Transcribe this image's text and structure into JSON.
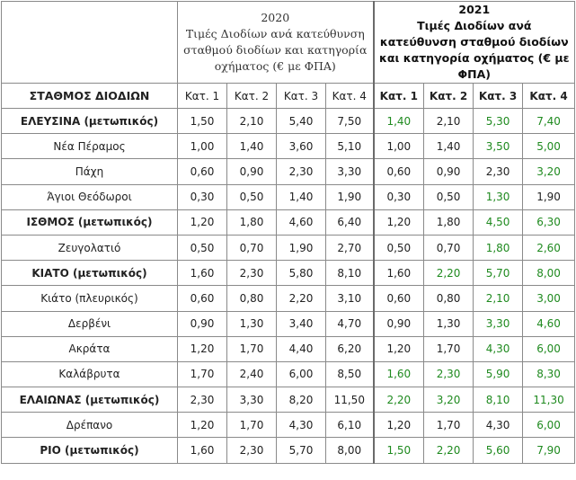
{
  "header": {
    "y2020": {
      "year": "2020",
      "desc": "Τιμές Διοδίων ανά κατεύθυνση σταθμού διοδίων και κατηγορία οχήματος (€ με ΦΠΑ)"
    },
    "y2021": {
      "year": "2021",
      "desc": "Τιμές Διοδίων ανά κατεύθυνση σταθμού διοδίων και κατηγορία οχήματος (€ με ΦΠΑ)"
    },
    "station_label": "ΣΤΑΘΜΟΣ ΔΙΟΔΙΩΝ",
    "cats_2020": [
      "Κατ. 1",
      "Κατ. 2",
      "Κατ. 3",
      "Κατ. 4"
    ],
    "cats_2021": [
      "Κατ. 1",
      "Κατ. 2",
      "Κατ. 3",
      "Κατ. 4"
    ]
  },
  "colors": {
    "highlight": "#1f8a1f",
    "border": "#8a8a8a"
  },
  "rows": [
    {
      "station": "ΕΛΕΥΣΙΝΑ (μετωπικός)",
      "main": true,
      "p2020": [
        "1,50",
        "2,10",
        "5,40",
        "7,50"
      ],
      "p2021": [
        "1,40",
        "2,10",
        "5,30",
        "7,40"
      ],
      "hl": [
        true,
        false,
        true,
        true
      ]
    },
    {
      "station": "Νέα Πέραμος",
      "main": false,
      "p2020": [
        "1,00",
        "1,40",
        "3,60",
        "5,10"
      ],
      "p2021": [
        "1,00",
        "1,40",
        "3,50",
        "5,00"
      ],
      "hl": [
        false,
        false,
        true,
        true
      ]
    },
    {
      "station": "Πάχη",
      "main": false,
      "p2020": [
        "0,60",
        "0,90",
        "2,30",
        "3,30"
      ],
      "p2021": [
        "0,60",
        "0,90",
        "2,30",
        "3,20"
      ],
      "hl": [
        false,
        false,
        false,
        true
      ]
    },
    {
      "station": "Άγιοι Θεόδωροι",
      "main": false,
      "p2020": [
        "0,30",
        "0,50",
        "1,40",
        "1,90"
      ],
      "p2021": [
        "0,30",
        "0,50",
        "1,30",
        "1,90"
      ],
      "hl": [
        false,
        false,
        true,
        false
      ]
    },
    {
      "station": "ΙΣΘΜΟΣ (μετωπικός)",
      "main": true,
      "p2020": [
        "1,20",
        "1,80",
        "4,60",
        "6,40"
      ],
      "p2021": [
        "1,20",
        "1,80",
        "4,50",
        "6,30"
      ],
      "hl": [
        false,
        false,
        true,
        true
      ]
    },
    {
      "station": "Ζευγολατιό",
      "main": false,
      "p2020": [
        "0,50",
        "0,70",
        "1,90",
        "2,70"
      ],
      "p2021": [
        "0,50",
        "0,70",
        "1,80",
        "2,60"
      ],
      "hl": [
        false,
        false,
        true,
        true
      ]
    },
    {
      "station": "ΚΙΑΤΟ (μετωπικός)",
      "main": true,
      "p2020": [
        "1,60",
        "2,30",
        "5,80",
        "8,10"
      ],
      "p2021": [
        "1,60",
        "2,20",
        "5,70",
        "8,00"
      ],
      "hl": [
        false,
        true,
        true,
        true
      ]
    },
    {
      "station": "Κιάτο (πλευρικός)",
      "main": false,
      "p2020": [
        "0,60",
        "0,80",
        "2,20",
        "3,10"
      ],
      "p2021": [
        "0,60",
        "0,80",
        "2,10",
        "3,00"
      ],
      "hl": [
        false,
        false,
        true,
        true
      ]
    },
    {
      "station": "Δερβένι",
      "main": false,
      "p2020": [
        "0,90",
        "1,30",
        "3,40",
        "4,70"
      ],
      "p2021": [
        "0,90",
        "1,30",
        "3,30",
        "4,60"
      ],
      "hl": [
        false,
        false,
        true,
        true
      ]
    },
    {
      "station": "Ακράτα",
      "main": false,
      "p2020": [
        "1,20",
        "1,70",
        "4,40",
        "6,20"
      ],
      "p2021": [
        "1,20",
        "1,70",
        "4,30",
        "6,00"
      ],
      "hl": [
        false,
        false,
        true,
        true
      ]
    },
    {
      "station": "Καλάβρυτα",
      "main": false,
      "p2020": [
        "1,70",
        "2,40",
        "6,00",
        "8,50"
      ],
      "p2021": [
        "1,60",
        "2,30",
        "5,90",
        "8,30"
      ],
      "hl": [
        true,
        true,
        true,
        true
      ]
    },
    {
      "station": "ΕΛΑΙΩΝΑΣ (μετωπικός)",
      "main": true,
      "p2020": [
        "2,30",
        "3,30",
        "8,20",
        "11,50"
      ],
      "p2021": [
        "2,20",
        "3,20",
        "8,10",
        "11,30"
      ],
      "hl": [
        true,
        true,
        true,
        true
      ]
    },
    {
      "station": "Δρέπανο",
      "main": false,
      "p2020": [
        "1,20",
        "1,70",
        "4,30",
        "6,10"
      ],
      "p2021": [
        "1,20",
        "1,70",
        "4,30",
        "6,00"
      ],
      "hl": [
        false,
        false,
        false,
        true
      ]
    },
    {
      "station": "ΡΙΟ (μετωπικός)",
      "main": true,
      "p2020": [
        "1,60",
        "2,30",
        "5,70",
        "8,00"
      ],
      "p2021": [
        "1,50",
        "2,20",
        "5,60",
        "7,90"
      ],
      "hl": [
        true,
        true,
        true,
        true
      ]
    }
  ]
}
